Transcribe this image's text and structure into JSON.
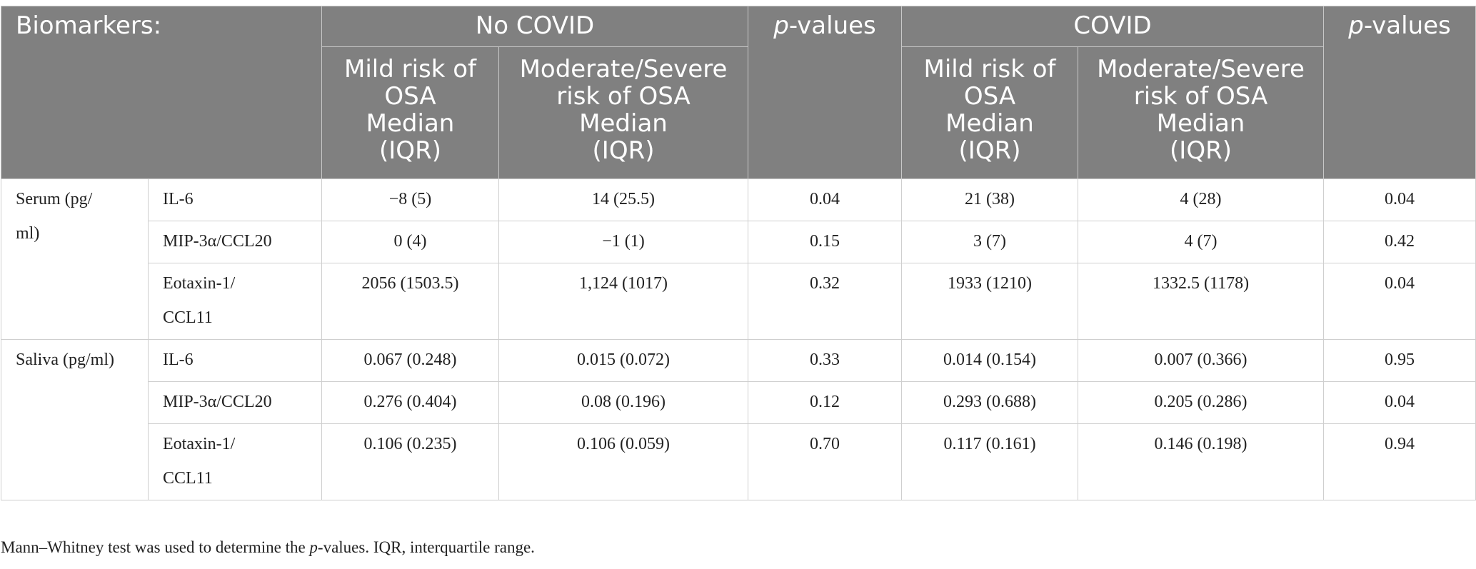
{
  "header": {
    "biomarkers": "Biomarkers:",
    "no_covid": "No COVID",
    "covid": "COVID",
    "p_italic": "p",
    "p_rest": "-values",
    "sub": [
      "Mild risk of",
      "OSA",
      "Median",
      "(IQR)"
    ],
    "sub_mod": [
      "Moderate/Severe",
      "risk of OSA",
      "Median",
      "(IQR)"
    ]
  },
  "groups": {
    "serum": [
      "Serum (pg/",
      "ml)"
    ],
    "saliva": "Saliva (pg/ml)"
  },
  "rows": [
    {
      "marker": [
        "IL-6"
      ],
      "nc_mild": "−8 (5)",
      "nc_mod": "14 (25.5)",
      "p1": "0.04",
      "c_mild": "21 (38)",
      "c_mod": "4 (28)",
      "p2": "0.04"
    },
    {
      "marker": [
        "MIP-3α/CCL20"
      ],
      "nc_mild": "0 (4)",
      "nc_mod": "−1 (1)",
      "p1": "0.15",
      "c_mild": "3 (7)",
      "c_mod": "4 (7)",
      "p2": "0.42"
    },
    {
      "marker": [
        "Eotaxin-1/",
        "CCL11"
      ],
      "nc_mild": "2056 (1503.5)",
      "nc_mod": "1,124 (1017)",
      "p1": "0.32",
      "c_mild": "1933 (1210)",
      "c_mod": "1332.5 (1178)",
      "p2": "0.04"
    },
    {
      "marker": [
        "IL-6"
      ],
      "nc_mild": "0.067 (0.248)",
      "nc_mod": "0.015 (0.072)",
      "p1": "0.33",
      "c_mild": "0.014 (0.154)",
      "c_mod": "0.007 (0.366)",
      "p2": "0.95"
    },
    {
      "marker": [
        "MIP-3α/CCL20"
      ],
      "nc_mild": "0.276 (0.404)",
      "nc_mod": "0.08 (0.196)",
      "p1": "0.12",
      "c_mild": "0.293 (0.688)",
      "c_mod": "0.205 (0.286)",
      "p2": "0.04"
    },
    {
      "marker": [
        "Eotaxin-1/",
        "CCL11"
      ],
      "nc_mild": "0.106 (0.235)",
      "nc_mod": "0.106 (0.059)",
      "p1": "0.70",
      "c_mild": "0.117 (0.161)",
      "c_mod": "0.146 (0.198)",
      "p2": "0.94"
    }
  ],
  "footnote": {
    "part1": "Mann–Whitney test was used to determine the ",
    "p_italic": "p",
    "part2": "-values. IQR, interquartile range."
  }
}
